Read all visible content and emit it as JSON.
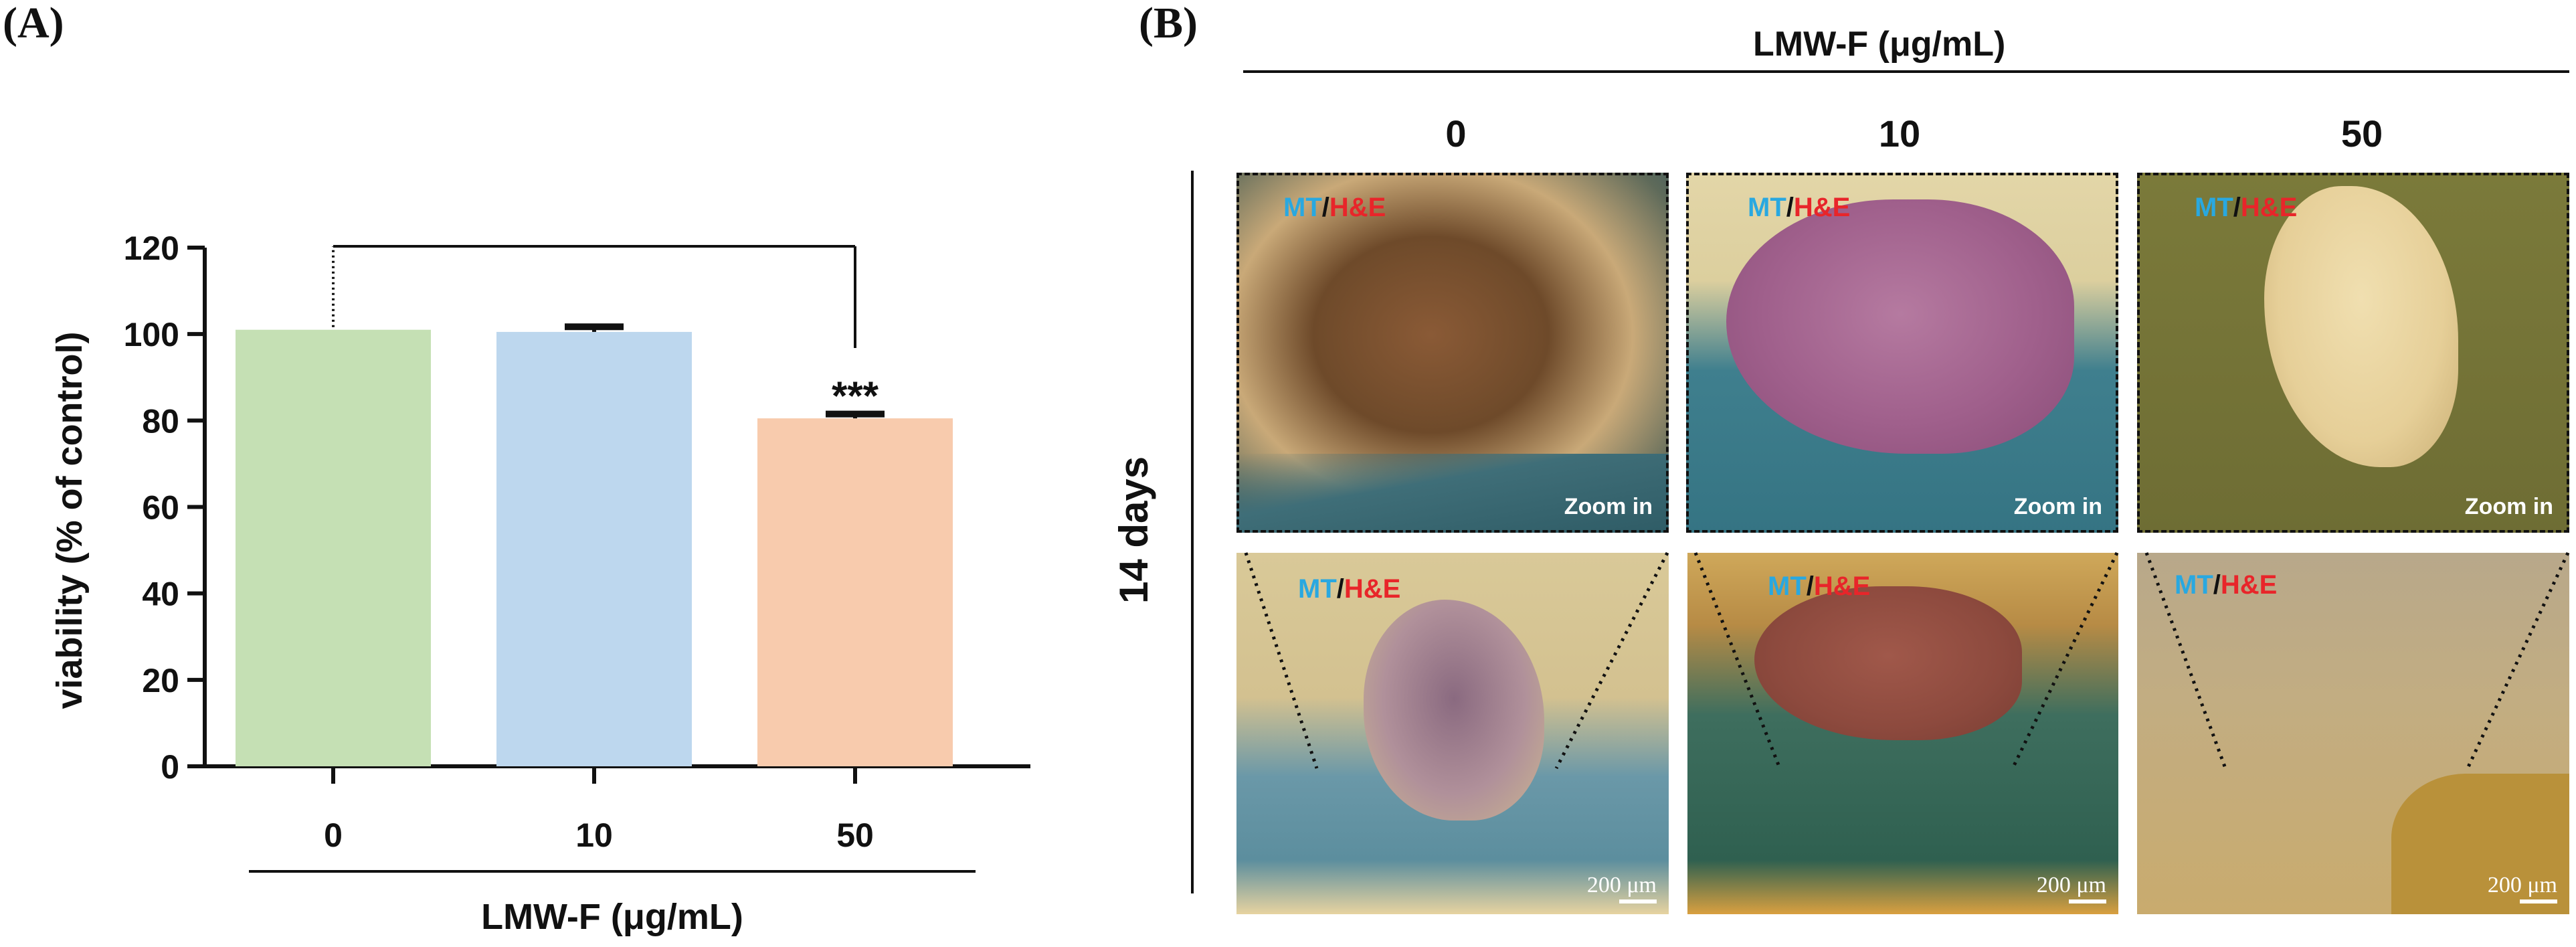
{
  "panel_a": {
    "letter": "(A)",
    "chart_data": {
      "type": "bar",
      "categories": [
        "0",
        "10",
        "50"
      ],
      "values": [
        101,
        100.5,
        80.5
      ],
      "errors": [
        0,
        1.2,
        1.0
      ],
      "ylabel": "viability (% of control)",
      "xlabel": "LMW-F (μg/mL)",
      "ylim": [
        0,
        120
      ],
      "yticks": [
        0,
        20,
        40,
        60,
        80,
        100,
        120
      ],
      "bar_colors": [
        "#c5e0b4",
        "#bdd7ee",
        "#f8cbad"
      ],
      "significance": {
        "from": "0",
        "to": "50",
        "label": "***"
      },
      "grid": false
    }
  },
  "panel_b": {
    "letter": "(B)",
    "header": "LMW-F (μg/mL)",
    "columns": [
      "0",
      "10",
      "50"
    ],
    "row_label": "14 days",
    "stain_mt": "MT",
    "stain_sep": "/",
    "stain_he": "H&E",
    "zoom_label": "Zoom in",
    "scale_label": "200 μm",
    "colors": {
      "mt": "#29a8e0",
      "he": "#e8252a"
    }
  }
}
